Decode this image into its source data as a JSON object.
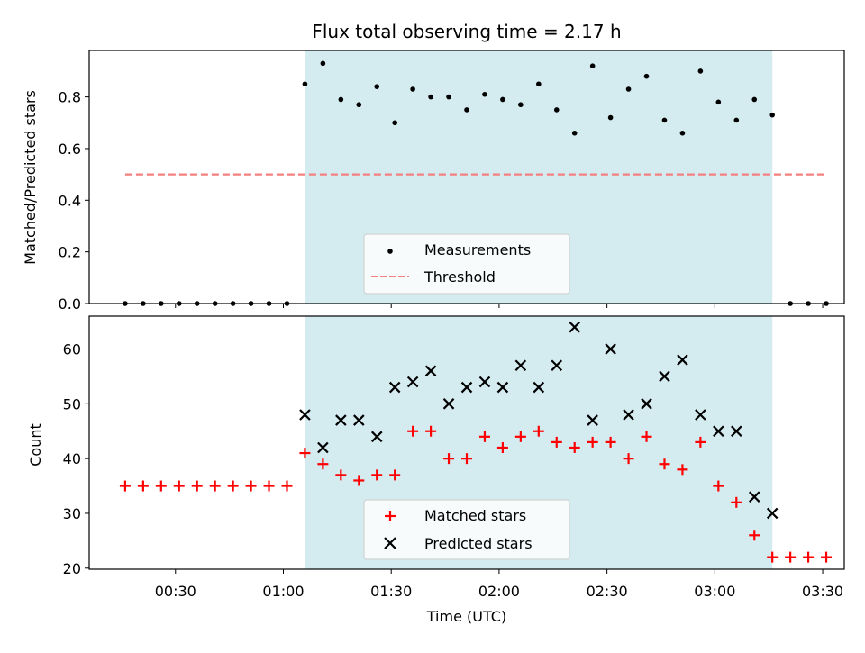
{
  "chart_data": [
    {
      "type": "scatter",
      "title": "Flux total observing time = 2.17 h",
      "xlabel": "",
      "ylabel": "Matched/Predicted stars",
      "xlim": [
        "00:06",
        "03:36"
      ],
      "ylim": [
        0,
        0.98
      ],
      "yticks": [
        0.0,
        0.2,
        0.4,
        0.6,
        0.8
      ],
      "ytick_labels": [
        "0.0",
        "0.2",
        "0.4",
        "0.6",
        "0.8"
      ],
      "shaded_region": {
        "x_start": "01:06",
        "x_end": "03:16",
        "color": "#d4ebf0"
      },
      "threshold": {
        "y": 0.5,
        "color": "#f47f7f",
        "style": "dashed",
        "x_start": "00:16",
        "x_end": "03:31"
      },
      "x": [
        "00:16",
        "00:21",
        "00:26",
        "00:31",
        "00:36",
        "00:41",
        "00:46",
        "00:51",
        "00:56",
        "01:01",
        "01:06",
        "01:11",
        "01:16",
        "01:21",
        "01:26",
        "01:31",
        "01:36",
        "01:41",
        "01:46",
        "01:51",
        "01:56",
        "02:01",
        "02:06",
        "02:11",
        "02:16",
        "02:21",
        "02:26",
        "02:31",
        "02:36",
        "02:41",
        "02:46",
        "02:51",
        "02:56",
        "03:01",
        "03:06",
        "03:11",
        "03:16",
        "03:21",
        "03:26",
        "03:31"
      ],
      "series": [
        {
          "name": "Measurements",
          "marker": "dot",
          "color": "#000000",
          "values": [
            0,
            0,
            0,
            0,
            0,
            0,
            0,
            0,
            0,
            0,
            0.85,
            0.93,
            0.79,
            0.77,
            0.84,
            0.7,
            0.83,
            0.8,
            0.8,
            0.75,
            0.81,
            0.79,
            0.77,
            0.85,
            0.75,
            0.66,
            0.92,
            0.72,
            0.83,
            0.88,
            0.71,
            0.66,
            0.9,
            0.78,
            0.71,
            0.79,
            0.73,
            0,
            0,
            0
          ]
        }
      ],
      "legend": {
        "placement": "lower-center",
        "entries": [
          {
            "label": "Measurements",
            "marker": "dot",
            "color": "#000000"
          },
          {
            "label": "Threshold",
            "marker": "dashed-line",
            "color": "#f47f7f"
          }
        ]
      }
    },
    {
      "type": "scatter",
      "title": "",
      "xlabel": "Time (UTC)",
      "ylabel": "Count",
      "xlim": [
        "00:06",
        "03:36"
      ],
      "ylim": [
        19.8,
        66
      ],
      "yticks": [
        20,
        30,
        40,
        50,
        60
      ],
      "ytick_labels": [
        "20",
        "30",
        "40",
        "50",
        "60"
      ],
      "xticks": [
        "00:30",
        "01:00",
        "01:30",
        "02:00",
        "02:30",
        "03:00",
        "03:30"
      ],
      "shaded_region": {
        "x_start": "01:06",
        "x_end": "03:16",
        "color": "#d4ebf0"
      },
      "series": [
        {
          "name": "Matched stars",
          "marker": "plus",
          "color": "#ff0000",
          "x": [
            "00:16",
            "00:21",
            "00:26",
            "00:31",
            "00:36",
            "00:41",
            "00:46",
            "00:51",
            "00:56",
            "01:01",
            "01:06",
            "01:11",
            "01:16",
            "01:21",
            "01:26",
            "01:31",
            "01:36",
            "01:41",
            "01:46",
            "01:51",
            "01:56",
            "02:01",
            "02:06",
            "02:11",
            "02:16",
            "02:21",
            "02:26",
            "02:31",
            "02:36",
            "02:41",
            "02:46",
            "02:51",
            "02:56",
            "03:01",
            "03:06",
            "03:11",
            "03:16",
            "03:21",
            "03:26",
            "03:31"
          ],
          "values": [
            35,
            35,
            35,
            35,
            35,
            35,
            35,
            35,
            35,
            35,
            41,
            39,
            37,
            36,
            37,
            37,
            45,
            45,
            40,
            40,
            44,
            42,
            44,
            45,
            43,
            42,
            43,
            43,
            40,
            44,
            39,
            38,
            43,
            35,
            32,
            26,
            22,
            22,
            22,
            22
          ]
        },
        {
          "name": "Predicted stars",
          "marker": "x",
          "color": "#000000",
          "x": [
            "01:06",
            "01:11",
            "01:16",
            "01:21",
            "01:26",
            "01:31",
            "01:36",
            "01:41",
            "01:46",
            "01:51",
            "01:56",
            "02:01",
            "02:06",
            "02:11",
            "02:16",
            "02:21",
            "02:26",
            "02:31",
            "02:36",
            "02:41",
            "02:46",
            "02:51",
            "02:56",
            "03:01",
            "03:06",
            "03:11",
            "03:16"
          ],
          "values": [
            48,
            42,
            47,
            47,
            44,
            53,
            54,
            56,
            50,
            53,
            54,
            53,
            57,
            53,
            57,
            64,
            47,
            60,
            48,
            50,
            55,
            58,
            48,
            45,
            45,
            33,
            30
          ]
        }
      ],
      "legend": {
        "placement": "lower-center",
        "entries": [
          {
            "label": "Matched stars",
            "marker": "plus",
            "color": "#ff0000"
          },
          {
            "label": "Predicted stars",
            "marker": "x",
            "color": "#000000"
          }
        ]
      }
    }
  ]
}
